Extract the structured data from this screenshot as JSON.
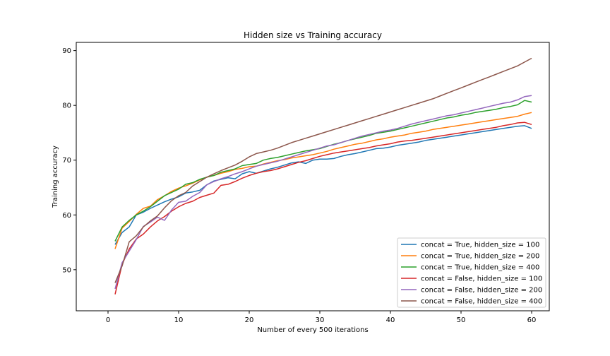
{
  "chart_data": {
    "type": "line",
    "title": "Hidden size vs Training accuracy",
    "xlabel": "Number of every 500 iterations",
    "ylabel": "Training accuracy",
    "xlim": [
      -4.5,
      62.5
    ],
    "ylim": [
      42.5,
      91.5
    ],
    "xticks": [
      0,
      10,
      20,
      30,
      40,
      50,
      60
    ],
    "yticks": [
      50,
      60,
      70,
      80,
      90
    ],
    "grid": false,
    "legend_position": "lower-right",
    "x": [
      1,
      2,
      3,
      4,
      5,
      6,
      7,
      8,
      9,
      10,
      11,
      12,
      13,
      14,
      15,
      16,
      17,
      18,
      19,
      20,
      21,
      22,
      23,
      24,
      25,
      26,
      27,
      28,
      29,
      30,
      31,
      32,
      33,
      34,
      35,
      36,
      37,
      38,
      39,
      40,
      41,
      42,
      43,
      44,
      45,
      46,
      47,
      48,
      49,
      50,
      51,
      52,
      53,
      54,
      55,
      56,
      57,
      58,
      59,
      60
    ],
    "series": [
      {
        "name": "concat = True, hidden_size = 100",
        "color": "#1f77b4",
        "values": [
          54.6,
          56.8,
          57.8,
          60.0,
          60.5,
          61.2,
          61.8,
          62.4,
          62.9,
          63.3,
          64.0,
          64.2,
          64.5,
          65.5,
          66.2,
          66.5,
          66.8,
          66.6,
          67.5,
          67.9,
          67.6,
          68.0,
          68.4,
          68.7,
          69.1,
          69.5,
          69.7,
          69.4,
          70.0,
          70.2,
          70.2,
          70.3,
          70.7,
          71.0,
          71.2,
          71.5,
          71.8,
          72.1,
          72.2,
          72.4,
          72.7,
          72.9,
          73.1,
          73.3,
          73.6,
          73.8,
          74.0,
          74.2,
          74.4,
          74.6,
          74.8,
          75.0,
          75.2,
          75.4,
          75.6,
          75.8,
          76.0,
          76.2,
          76.3,
          75.8
        ]
      },
      {
        "name": "concat = True, hidden_size = 200",
        "color": "#ff7f0e",
        "values": [
          53.8,
          57.6,
          58.8,
          60.1,
          61.2,
          61.6,
          62.8,
          63.5,
          64.3,
          64.9,
          65.3,
          65.8,
          66.4,
          66.9,
          67.2,
          67.6,
          67.9,
          68.3,
          68.5,
          68.8,
          68.9,
          69.3,
          69.6,
          69.9,
          70.1,
          70.4,
          70.6,
          70.8,
          71.0,
          71.3,
          71.6,
          72.0,
          72.3,
          72.6,
          72.9,
          73.1,
          73.4,
          73.7,
          73.9,
          74.2,
          74.4,
          74.6,
          74.9,
          75.1,
          75.3,
          75.6,
          75.8,
          76.0,
          76.2,
          76.4,
          76.6,
          76.8,
          77.0,
          77.2,
          77.4,
          77.6,
          77.8,
          78.0,
          78.4,
          78.7
        ]
      },
      {
        "name": "concat = True, hidden_size = 400",
        "color": "#2ca02c",
        "values": [
          55.2,
          57.8,
          59.0,
          60.0,
          60.7,
          61.5,
          62.5,
          63.5,
          64.1,
          64.7,
          65.6,
          65.9,
          66.5,
          66.9,
          67.2,
          67.8,
          68.1,
          68.4,
          69.0,
          69.2,
          69.4,
          70.0,
          70.3,
          70.5,
          70.8,
          71.1,
          71.4,
          71.7,
          71.9,
          72.1,
          72.5,
          72.9,
          73.2,
          73.6,
          73.9,
          74.2,
          74.5,
          74.9,
          75.1,
          75.3,
          75.6,
          75.9,
          76.2,
          76.5,
          76.8,
          77.1,
          77.4,
          77.7,
          77.9,
          78.2,
          78.4,
          78.7,
          78.9,
          79.1,
          79.3,
          79.6,
          79.8,
          80.1,
          80.9,
          80.6
        ]
      },
      {
        "name": "concat = False, hidden_size = 100",
        "color": "#d62728",
        "values": [
          45.5,
          51.0,
          53.8,
          55.6,
          56.5,
          57.8,
          58.9,
          59.7,
          60.7,
          61.5,
          62.1,
          62.5,
          63.2,
          63.6,
          64.0,
          65.4,
          65.6,
          66.1,
          66.7,
          67.2,
          67.6,
          67.9,
          68.1,
          68.4,
          68.8,
          69.2,
          69.6,
          69.9,
          70.3,
          70.7,
          71.0,
          71.3,
          71.5,
          71.7,
          71.9,
          72.1,
          72.3,
          72.6,
          72.8,
          73.0,
          73.3,
          73.5,
          73.6,
          73.8,
          74.0,
          74.2,
          74.4,
          74.6,
          74.8,
          75.0,
          75.2,
          75.4,
          75.6,
          75.8,
          76.0,
          76.3,
          76.5,
          76.8,
          76.9,
          76.5
        ]
      },
      {
        "name": "concat = False, hidden_size = 200",
        "color": "#9467bd",
        "values": [
          46.5,
          51.3,
          53.4,
          55.5,
          57.9,
          58.7,
          59.6,
          59.0,
          60.9,
          62.3,
          62.5,
          63.4,
          64.1,
          65.5,
          66.1,
          66.6,
          67.0,
          67.5,
          67.9,
          68.4,
          68.9,
          69.2,
          69.5,
          69.8,
          70.2,
          70.6,
          71.0,
          71.4,
          71.8,
          72.2,
          72.6,
          72.8,
          73.2,
          73.6,
          74.0,
          74.4,
          74.7,
          75.0,
          75.3,
          75.5,
          75.8,
          76.2,
          76.6,
          76.9,
          77.2,
          77.5,
          77.8,
          78.1,
          78.3,
          78.6,
          78.9,
          79.2,
          79.5,
          79.8,
          80.1,
          80.4,
          80.6,
          81.0,
          81.6,
          81.8
        ]
      },
      {
        "name": "concat = False, hidden_size = 400",
        "color": "#8c564b",
        "values": [
          47.6,
          50.7,
          55.1,
          56.2,
          57.8,
          58.9,
          59.8,
          61.3,
          62.6,
          63.5,
          64.1,
          65.3,
          66.1,
          66.9,
          67.5,
          68.1,
          68.6,
          69.1,
          69.8,
          70.6,
          71.2,
          71.5,
          71.8,
          72.2,
          72.7,
          73.2,
          73.6,
          74.0,
          74.4,
          74.8,
          75.2,
          75.6,
          76.0,
          76.4,
          76.8,
          77.2,
          77.6,
          78.0,
          78.4,
          78.8,
          79.2,
          79.6,
          80.0,
          80.4,
          80.8,
          81.2,
          81.7,
          82.2,
          82.7,
          83.2,
          83.7,
          84.2,
          84.7,
          85.2,
          85.7,
          86.2,
          86.7,
          87.2,
          87.9,
          88.6
        ]
      }
    ]
  }
}
